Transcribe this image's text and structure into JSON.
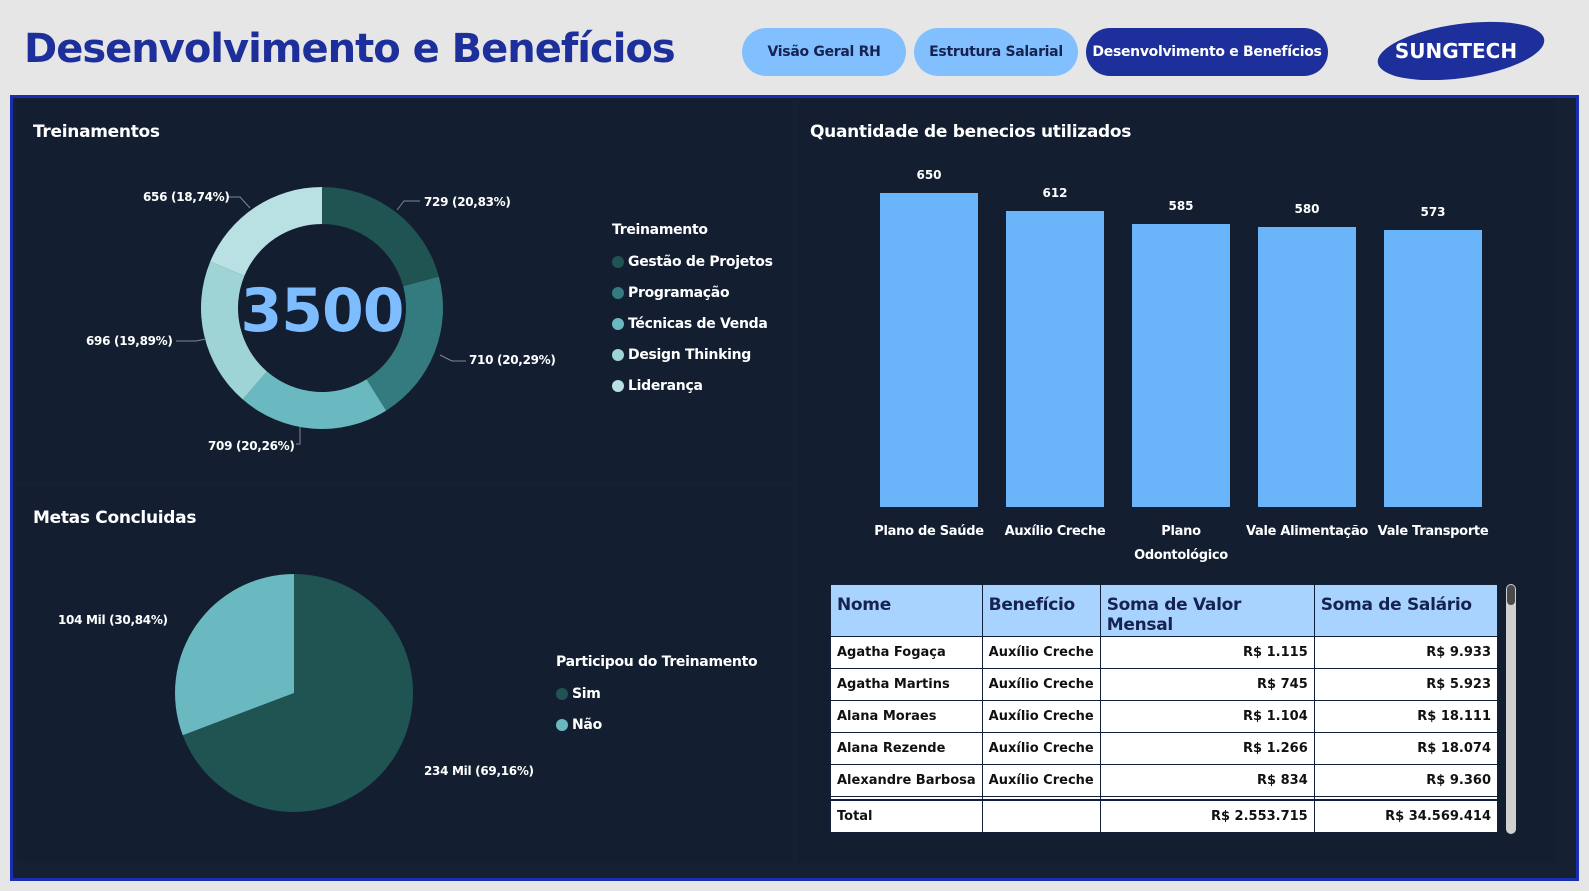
{
  "header": {
    "title": "Desenvolvimento e Benefícios",
    "nav": [
      "Visão Geral RH",
      "Estrutura Salarial",
      "Desenvolvimento e Benefícios"
    ],
    "logo_text": "SUNGTECH"
  },
  "colors": {
    "page_bg": "#e6e6e6",
    "panel_bg": "#131f31",
    "accent": "#1d2f9a",
    "bar": "#6ab4fa",
    "table_header": "#a9d3ff"
  },
  "treinamentos": {
    "title": "Treinamentos",
    "center_value": "3500",
    "legend_title": "Treinamento",
    "slices": [
      {
        "name": "Gestão de Projetos",
        "value": 729,
        "label": "729 (20,83%)",
        "color": "#205453"
      },
      {
        "name": "Programação",
        "value": 710,
        "label": "710 (20,29%)",
        "color": "#347b7f"
      },
      {
        "name": "Técnicas de Venda",
        "value": 709,
        "label": "709 (20,26%)",
        "color": "#6ab9c0"
      },
      {
        "name": "Design Thinking",
        "value": 696,
        "label": "696 (19,89%)",
        "color": "#9fd4d6"
      },
      {
        "name": "Liderança",
        "value": 656,
        "label": "656 (18,74%)",
        "color": "#b9e0e3"
      }
    ]
  },
  "metas": {
    "title": "Metas Concluidas",
    "legend_title": "Participou do Treinamento",
    "slices": [
      {
        "name": "Sim",
        "value": 234,
        "label": "234 Mil (69,16%)",
        "color": "#205453"
      },
      {
        "name": "Não",
        "value": 104,
        "label": "104 Mil (30,84%)",
        "color": "#6ab9c0"
      }
    ]
  },
  "beneficios": {
    "title": "Quantidade de benecios utilizados",
    "categories": [
      "Plano de Saúde",
      "Auxílio Creche",
      "Plano Odontológico",
      "Vale Alimentação",
      "Vale Transporte"
    ],
    "values": [
      650,
      612,
      585,
      580,
      573
    ]
  },
  "chart_data": [
    {
      "type": "pie",
      "title": "Treinamentos",
      "categories": [
        "Gestão de Projetos",
        "Programação",
        "Técnicas de Venda",
        "Design Thinking",
        "Liderança"
      ],
      "values": [
        729,
        710,
        709,
        696,
        656
      ]
    },
    {
      "type": "pie",
      "title": "Metas Concluidas",
      "categories": [
        "Sim",
        "Não"
      ],
      "values": [
        234000,
        104000
      ]
    },
    {
      "type": "bar",
      "title": "Quantidade de benecios utilizados",
      "categories": [
        "Plano de Saúde",
        "Auxílio Creche",
        "Plano Odontológico",
        "Vale Alimentação",
        "Vale Transporte"
      ],
      "values": [
        650,
        612,
        585,
        580,
        573
      ]
    }
  ],
  "table": {
    "headers": [
      "Nome",
      "Benefício",
      "Soma de Valor Mensal",
      "Soma de Salário"
    ],
    "rows": [
      [
        "Agatha Fogaça",
        "Auxílio Creche",
        "R$ 1.115",
        "R$ 9.933"
      ],
      [
        "Agatha Martins",
        "Auxílio Creche",
        "R$ 745",
        "R$ 5.923"
      ],
      [
        "Alana Moraes",
        "Auxílio Creche",
        "R$ 1.104",
        "R$ 18.111"
      ],
      [
        "Alana Rezende",
        "Auxílio Creche",
        "R$ 1.266",
        "R$ 18.074"
      ],
      [
        "Alexandre Barbosa",
        "Auxílio Creche",
        "R$ 834",
        "R$ 9.360"
      ]
    ],
    "total": [
      "Total",
      "",
      "R$ 2.553.715",
      "R$ 34.569.414"
    ]
  }
}
